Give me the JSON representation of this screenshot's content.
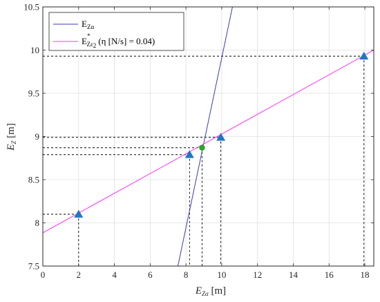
{
  "chart_data": {
    "type": "line",
    "xlabel": {
      "main": "E",
      "sub": "Zα",
      "unit": " [m]"
    },
    "ylabel": {
      "main": "E",
      "sub": "Z",
      "unit": " [m]"
    },
    "xlim": [
      0,
      18.5
    ],
    "ylim": [
      7.5,
      10.5
    ],
    "xticks": [
      0,
      2,
      4,
      6,
      8,
      10,
      12,
      14,
      16,
      18
    ],
    "yticks": [
      7.5,
      8,
      8.5,
      9,
      9.5,
      10,
      10.5
    ],
    "xtick_labels": [
      "0",
      "2",
      "4",
      "6",
      "8",
      "10",
      "12",
      "14",
      "16",
      "18"
    ],
    "ytick_labels": [
      "7.5",
      "8",
      "8.5",
      "9",
      "9.5",
      "10",
      "10.5"
    ],
    "grid": true,
    "legend_position": "top-left",
    "series": [
      {
        "name": "E_Zα",
        "color": "#3a3ab8",
        "x": [
          7.55,
          10.6
        ],
        "y": [
          7.5,
          10.5
        ]
      },
      {
        "name": "E*_Zε2 (η [N/s] = 0.04)",
        "color": "#ff33ff",
        "x": [
          0,
          18.5
        ],
        "y": [
          7.885,
          10.0
        ]
      }
    ],
    "legend": [
      {
        "main": "E",
        "sub": "Zα",
        "sup": "",
        "suffix": ""
      },
      {
        "main": "E",
        "sub": "Zε",
        "subsub": "2",
        "sup": "*",
        "suffix": "(η [N/s] = 0.04)"
      }
    ],
    "markers": [
      {
        "x": 2.0,
        "y": 8.1,
        "shape": "triangle",
        "color": "#1f77c4"
      },
      {
        "x": 8.2,
        "y": 8.79,
        "shape": "triangle",
        "color": "#1f77c4"
      },
      {
        "x": 9.95,
        "y": 8.99,
        "shape": "triangle",
        "color": "#1f77c4"
      },
      {
        "x": 17.95,
        "y": 9.93,
        "shape": "triangle",
        "color": "#1f77c4"
      }
    ],
    "intersection": {
      "x": 8.9,
      "y": 8.87,
      "color": "#22aa22"
    },
    "dashed_guides": [
      {
        "x": 2.0,
        "y": 8.1
      },
      {
        "x": 8.2,
        "y": 8.79
      },
      {
        "x": 8.9,
        "y": 8.87
      },
      {
        "x": 9.95,
        "y": 8.99
      },
      {
        "x": 17.95,
        "y": 9.93
      }
    ]
  }
}
